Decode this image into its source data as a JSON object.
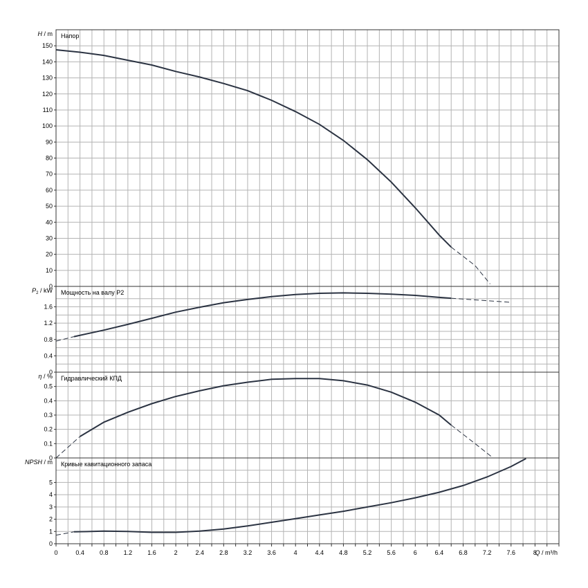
{
  "chart_data": [
    {
      "type": "line",
      "title": "Напор",
      "ylabel_main": "H",
      "ylabel_unit": "m",
      "ylim": [
        0,
        160
      ],
      "yticks": [
        0,
        10,
        20,
        30,
        40,
        50,
        60,
        70,
        80,
        90,
        100,
        110,
        120,
        130,
        140,
        150
      ],
      "grid": true,
      "series": [
        {
          "solid": [
            [
              0,
              147.5
            ],
            [
              0.4,
              146
            ],
            [
              0.8,
              144
            ],
            [
              1.2,
              141
            ],
            [
              1.6,
              138
            ],
            [
              2.0,
              134
            ],
            [
              2.4,
              130.5
            ],
            [
              2.8,
              126.5
            ],
            [
              3.2,
              122
            ],
            [
              3.6,
              116
            ],
            [
              4.0,
              109
            ],
            [
              4.4,
              101
            ],
            [
              4.8,
              91
            ],
            [
              5.2,
              79
            ],
            [
              5.6,
              65
            ],
            [
              6.0,
              49
            ],
            [
              6.4,
              32
            ],
            [
              6.6,
              24.5
            ]
          ],
          "dashed": [
            [
              6.6,
              24.5
            ],
            [
              7.0,
              13
            ],
            [
              7.25,
              1.5
            ]
          ]
        }
      ]
    },
    {
      "type": "line",
      "title": "Мощность на валу P2",
      "ylabel_main": "P",
      "ylabel_sub": "2",
      "ylabel_unit": "kW",
      "ylim": [
        0,
        2.1
      ],
      "yticks": [
        0,
        0.4,
        0.8,
        1.2,
        1.6
      ],
      "yticklabels": [
        "0",
        "0.4",
        "0.8",
        "1.2",
        "1.6"
      ],
      "grid": true,
      "series": [
        {
          "dashed": [
            [
              0,
              0.76
            ],
            [
              0.3,
              0.87
            ]
          ],
          "solid": [
            [
              0.3,
              0.87
            ],
            [
              0.8,
              1.03
            ],
            [
              1.2,
              1.17
            ],
            [
              1.6,
              1.32
            ],
            [
              2.0,
              1.47
            ],
            [
              2.4,
              1.59
            ],
            [
              2.8,
              1.7
            ],
            [
              3.2,
              1.78
            ],
            [
              3.6,
              1.85
            ],
            [
              4.0,
              1.9
            ],
            [
              4.4,
              1.93
            ],
            [
              4.8,
              1.94
            ],
            [
              5.2,
              1.93
            ],
            [
              5.6,
              1.91
            ],
            [
              6.0,
              1.88
            ],
            [
              6.4,
              1.83
            ],
            [
              6.6,
              1.81
            ]
          ],
          "dashed2": [
            [
              6.6,
              1.81
            ],
            [
              7.2,
              1.75
            ],
            [
              7.6,
              1.71
            ]
          ]
        }
      ]
    },
    {
      "type": "line",
      "title": "Гидравлический КПД",
      "ylabel_main": "η",
      "ylabel_unit": "%",
      "ylim": [
        0,
        0.6
      ],
      "yticks": [
        0,
        0.1,
        0.2,
        0.3,
        0.4,
        0.5
      ],
      "yticklabels": [
        "0",
        "0.1",
        "0.2",
        "0.3",
        "0.4",
        "0.5"
      ],
      "grid": true,
      "series": [
        {
          "dashed": [
            [
              0,
              0
            ],
            [
              0.4,
              0.15
            ]
          ],
          "solid": [
            [
              0.4,
              0.15
            ],
            [
              0.8,
              0.25
            ],
            [
              1.2,
              0.32
            ],
            [
              1.6,
              0.38
            ],
            [
              2.0,
              0.43
            ],
            [
              2.4,
              0.47
            ],
            [
              2.8,
              0.505
            ],
            [
              3.2,
              0.53
            ],
            [
              3.6,
              0.55
            ],
            [
              4.0,
              0.555
            ],
            [
              4.4,
              0.555
            ],
            [
              4.8,
              0.54
            ],
            [
              5.2,
              0.51
            ],
            [
              5.6,
              0.46
            ],
            [
              6.0,
              0.39
            ],
            [
              6.4,
              0.3
            ],
            [
              6.6,
              0.23
            ]
          ],
          "dashed2": [
            [
              6.6,
              0.23
            ],
            [
              7.0,
              0.1
            ],
            [
              7.3,
              0
            ]
          ]
        }
      ]
    },
    {
      "type": "line",
      "title": "Кривые кавитационного запаса",
      "ylabel_main": "NPSH",
      "ylabel_unit": "m",
      "ylim": [
        0,
        7
      ],
      "yticks": [
        0,
        1,
        2,
        3,
        4,
        5
      ],
      "grid": true,
      "series": [
        {
          "dashed": [
            [
              0,
              0.7
            ],
            [
              0.3,
              0.97
            ]
          ],
          "solid": [
            [
              0.3,
              0.97
            ],
            [
              0.8,
              1.03
            ],
            [
              1.2,
              1.0
            ],
            [
              1.6,
              0.93
            ],
            [
              2.0,
              0.93
            ],
            [
              2.4,
              1.03
            ],
            [
              2.8,
              1.2
            ],
            [
              3.2,
              1.45
            ],
            [
              3.6,
              1.75
            ],
            [
              4.0,
              2.05
            ],
            [
              4.4,
              2.35
            ],
            [
              4.8,
              2.65
            ],
            [
              5.2,
              3.0
            ],
            [
              5.6,
              3.35
            ],
            [
              6.0,
              3.75
            ],
            [
              6.4,
              4.2
            ],
            [
              6.8,
              4.75
            ],
            [
              7.2,
              5.45
            ],
            [
              7.6,
              6.3
            ],
            [
              7.85,
              6.95
            ]
          ]
        }
      ]
    }
  ],
  "x_axis": {
    "label": "Q",
    "unit": "m³/h",
    "min": 0,
    "max": 8.4,
    "ticks": [
      0,
      0.4,
      0.8,
      1.2,
      1.6,
      2,
      2.4,
      2.8,
      3.2,
      3.6,
      4,
      4.4,
      4.8,
      5.2,
      5.6,
      6,
      6.4,
      6.8,
      7.2,
      7.6,
      8
    ],
    "ticklabels": [
      "0",
      "0.4",
      "0.8",
      "1.2",
      "1.6",
      "2",
      "2.4",
      "2.8",
      "3.2",
      "3.6",
      "4",
      "4.4",
      "4.8",
      "5.2",
      "5.6",
      "6",
      "6.4",
      "6.8",
      "7.2",
      "7.6",
      "8"
    ]
  },
  "colors": {
    "curve": "#2b3342",
    "grid": "#b3b3b3",
    "frame": "#333333"
  }
}
